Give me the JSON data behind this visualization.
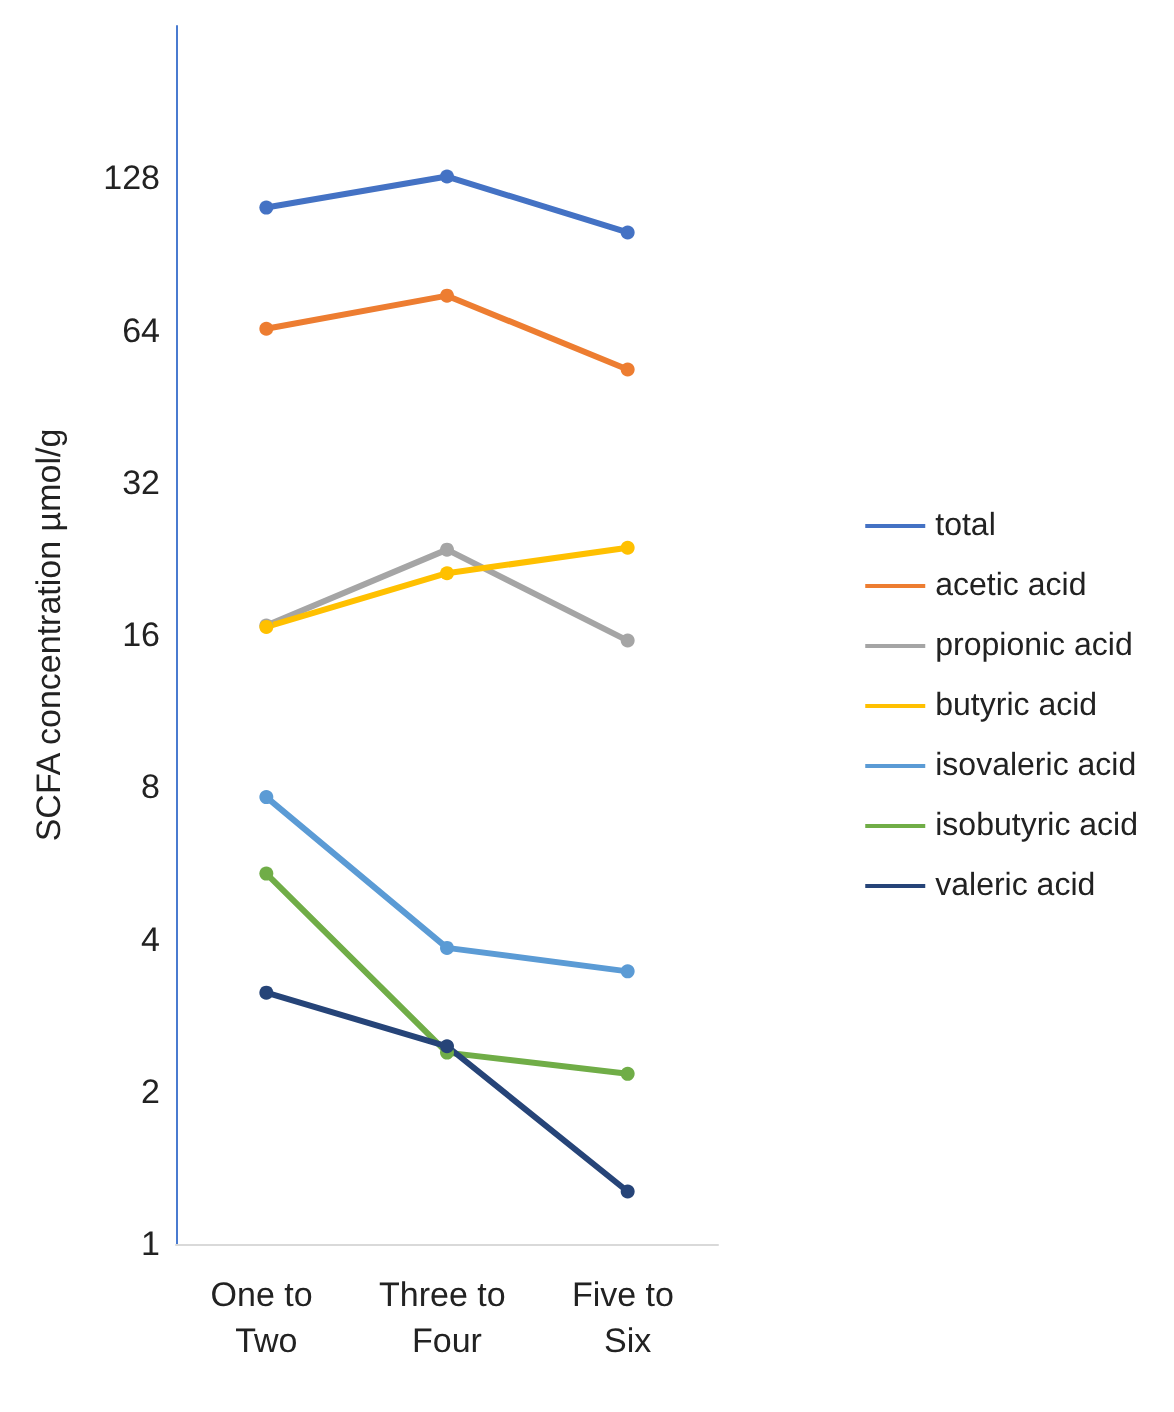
{
  "chart_data": {
    "type": "line",
    "ylabel": "SCFA concentration µmol/g",
    "categories": [
      "One to Two",
      "Three to Four",
      "Five to Six"
    ],
    "log": true,
    "ylim": [
      1,
      256
    ],
    "yticks": [
      1,
      2,
      4,
      8,
      16,
      32,
      64,
      128
    ],
    "grid": false,
    "legend": "right",
    "marker": "circle",
    "line_style": "solid",
    "series": [
      {
        "name": "total",
        "color": "#4472c4",
        "values": [
          112,
          129,
          100
        ]
      },
      {
        "name": "acetic acid",
        "color": "#ed7d31",
        "values": [
          64.5,
          75,
          53.6
        ]
      },
      {
        "name": "propionic acid",
        "color": "#a5a5a5",
        "values": [
          16.7,
          23.6,
          15.6
        ]
      },
      {
        "name": "butyric acid",
        "color": "#ffc000",
        "values": [
          16.6,
          21.2,
          23.8
        ]
      },
      {
        "name": "isovaleric acid",
        "color": "#5b9bd5",
        "values": [
          7.65,
          3.85,
          3.46
        ]
      },
      {
        "name": "isobutyric acid",
        "color": "#70ad47",
        "values": [
          5.4,
          2.39,
          2.17
        ]
      },
      {
        "name": "valeric acid",
        "color": "#264478",
        "values": [
          3.14,
          2.46,
          1.27
        ]
      }
    ]
  }
}
